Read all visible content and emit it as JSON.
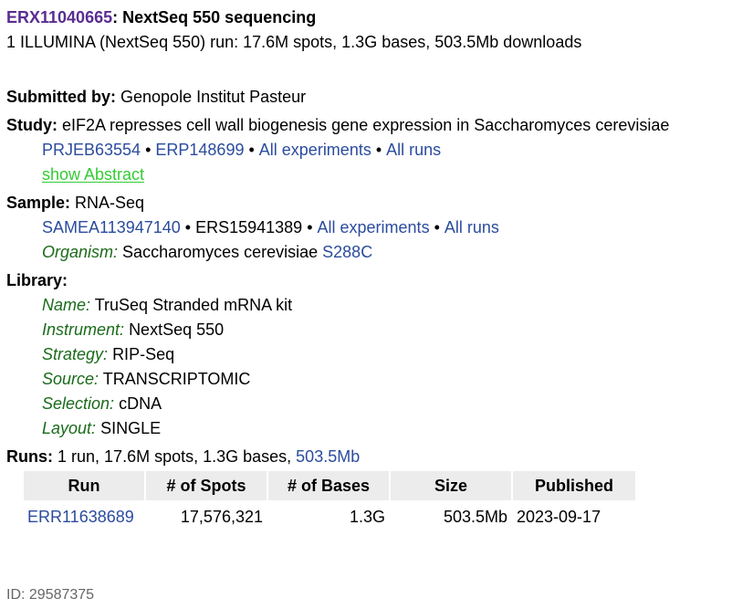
{
  "header": {
    "accession": "ERX11040665",
    "colon": ":",
    "title": "NextSeq 550 sequencing",
    "summary": "1 ILLUMINA (NextSeq 550) run: 17.6M spots, 1.3G bases, 503.5Mb downloads"
  },
  "submitted": {
    "label": "Submitted by:",
    "value": "Genopole Institut Pasteur"
  },
  "study": {
    "label": "Study:",
    "value": "eIF2A represses cell wall biogenesis gene expression in Saccharomyces cerevisiae",
    "bioproject": "PRJEB63554",
    "study_acc": "ERP148699",
    "all_experiments": "All experiments",
    "all_runs": "All runs",
    "show_abstract": "show Abstract",
    "bullet": "•"
  },
  "sample": {
    "label": "Sample:",
    "value": "RNA-Seq",
    "biosample": "SAMEA113947140",
    "ers": "ERS15941389",
    "all_experiments": "All experiments",
    "all_runs": "All runs",
    "organism_label": "Organism:",
    "organism": "Saccharomyces cerevisiae",
    "strain": "S288C"
  },
  "library": {
    "label": "Library:",
    "fields": [
      {
        "label": "Name:",
        "value": "TruSeq Stranded mRNA kit"
      },
      {
        "label": "Instrument:",
        "value": "NextSeq 550"
      },
      {
        "label": "Strategy:",
        "value": "RIP-Seq"
      },
      {
        "label": "Source:",
        "value": "TRANSCRIPTOMIC"
      },
      {
        "label": "Selection:",
        "value": "cDNA"
      },
      {
        "label": "Layout:",
        "value": "SINGLE"
      }
    ]
  },
  "runs": {
    "label": "Runs:",
    "summary": "1 run, 17.6M spots, 1.3G bases,",
    "size_link": "503.5Mb",
    "columns": [
      "Run",
      "# of Spots",
      "# of Bases",
      "Size",
      "Published"
    ],
    "rows": [
      {
        "run": "ERR11638689",
        "spots": "17,576,321",
        "bases": "1.3G",
        "size": "503.5Mb",
        "published": "2023-09-17"
      }
    ]
  },
  "footer": {
    "id": "ID: 29587375"
  },
  "colors": {
    "link": "#2b4c9e",
    "visited": "#5a2d91",
    "abstract": "#33cc33",
    "field_label": "#1a6b1a",
    "header_bg": "#ececec"
  }
}
